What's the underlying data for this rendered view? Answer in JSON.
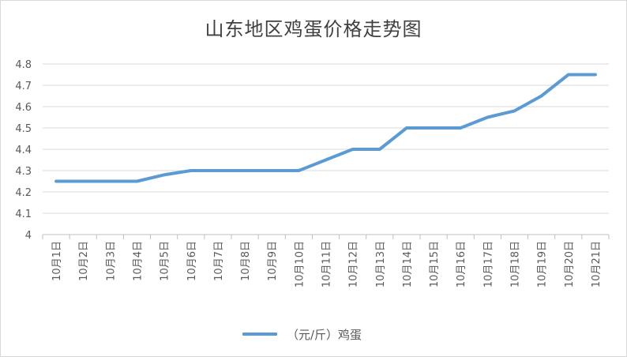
{
  "chart_data": {
    "type": "line",
    "title": "山东地区鸡蛋价格走势图",
    "categories": [
      "10月1日",
      "10月2日",
      "10月3日",
      "10月4日",
      "10月5日",
      "10月6日",
      "10月7日",
      "10月8日",
      "10月9日",
      "10月10日",
      "10月11日",
      "10月12日",
      "10月13日",
      "10月14日",
      "10月15日",
      "10月16日",
      "10月17日",
      "10月18日",
      "10月19日",
      "10月20日",
      "10月21日"
    ],
    "series": [
      {
        "name": "（元/斤）鸡蛋",
        "color": "#5b9bd5",
        "values": [
          4.25,
          4.25,
          4.25,
          4.25,
          4.28,
          4.3,
          4.3,
          4.3,
          4.3,
          4.3,
          4.35,
          4.4,
          4.4,
          4.5,
          4.5,
          4.5,
          4.55,
          4.58,
          4.65,
          4.75,
          4.75
        ]
      }
    ],
    "yticks": [
      "4",
      "4.1",
      "4.2",
      "4.3",
      "4.4",
      "4.5",
      "4.6",
      "4.7",
      "4.8"
    ],
    "ylim": [
      4,
      4.8
    ],
    "grid": true,
    "legend": "bottom"
  }
}
